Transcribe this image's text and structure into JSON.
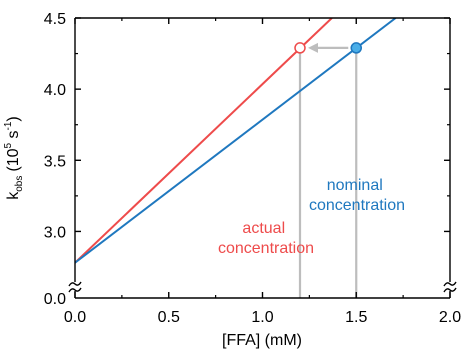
{
  "chart_data": {
    "type": "line",
    "xlabel": "[FFA] (mM)",
    "ylabel": {
      "main": "k",
      "sub": "obs",
      "unit_open": "(10",
      "unit_sup": "5",
      "unit_mid": " s",
      "unit_sup2": "-1",
      "unit_close": ")"
    },
    "xlim": [
      0.0,
      2.0
    ],
    "ylim": [
      2.75,
      4.5
    ],
    "y_axis_break": true,
    "y_break_label": "0.0",
    "x_ticks": [
      0.0,
      0.5,
      1.0,
      1.5,
      2.0
    ],
    "x_tick_labels": [
      "0.0",
      "0.5",
      "1.0",
      "1.5",
      "2.0"
    ],
    "y_ticks": [
      3.0,
      3.5,
      4.0,
      4.5
    ],
    "y_tick_labels": [
      "3.0",
      "3.5",
      "4.0",
      "4.5"
    ],
    "grid": false,
    "series": [
      {
        "name": "actual concentration",
        "color": "#ee4b4b",
        "x": [
          0.0,
          1.37
        ],
        "y": [
          2.78,
          4.5
        ]
      },
      {
        "name": "nominal concentration",
        "color": "#1f78bf",
        "x": [
          0.0,
          1.71
        ],
        "y": [
          2.78,
          4.5
        ]
      }
    ],
    "annotations": {
      "actual_label": [
        "actual",
        "concentration"
      ],
      "nominal_label": [
        "nominal",
        "concentration"
      ],
      "open_point": {
        "x": 1.2,
        "y": 4.29
      },
      "filled_point": {
        "x": 1.5,
        "y": 4.29
      },
      "arrow": {
        "from_x": 1.5,
        "to_x": 1.2,
        "y": 4.29
      },
      "guide_color": "#bdbdbd",
      "filled_point_color": "#4aaee8"
    }
  }
}
